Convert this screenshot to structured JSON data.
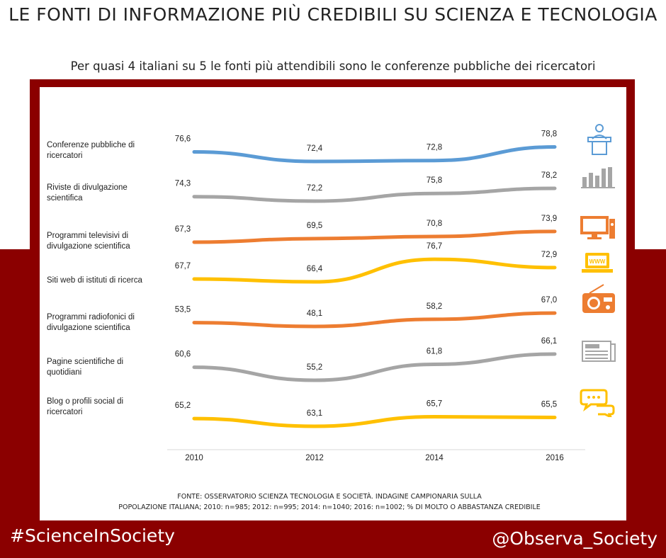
{
  "header": {
    "title": "LE FONTI DI INFORMAZIONE PIÙ CREDIBILI SU SCIENZA E TECNOLOGIA",
    "subtitle": "Per quasi 4 italiani su 5 le fonti più attendibili sono le conferenze pubbliche dei ricercatori"
  },
  "footer": {
    "source_line1": "FONTE: OSSERVATORIO SCIENZA TECNOLOGIA E SOCIETÀ. INDAGINE CAMPIONARIA SULLA",
    "source_line2": "POPOLAZIONE ITALIANA; 2010: n=985; 2012: n=995; 2014: n=1040; 2016: n=1002; % DI MOLTO O ABBASTANZA CREDIBILE",
    "hashtag": "#ScienceInSociety",
    "handle": "@Observa_Society"
  },
  "colors": {
    "frame": "#8b0000",
    "blue": "#5b9bd5",
    "gray": "#a5a5a5",
    "orange": "#ed7d31",
    "yellow": "#ffc000"
  },
  "chart_data": {
    "type": "line",
    "x": [
      "2010",
      "2012",
      "2014",
      "2016"
    ],
    "series": [
      {
        "name": "Conferenze pubbliche di ricercatori",
        "values": [
          76.6,
          72.4,
          72.8,
          78.8
        ],
        "labels": [
          "76,6",
          "72,4",
          "72,8",
          "78,8"
        ],
        "color": "#5b9bd5",
        "icon": "lecture-podium-icon"
      },
      {
        "name": "Riviste di divulgazione scientifica",
        "values": [
          74.3,
          72.2,
          75.8,
          78.2
        ],
        "labels": [
          "74,3",
          "72,2",
          "75,8",
          "78,2"
        ],
        "color": "#a5a5a5",
        "icon": "magazines-icon"
      },
      {
        "name": "Programmi televisivi di divulgazione scientifica",
        "values": [
          67.3,
          69.5,
          70.8,
          73.9
        ],
        "labels": [
          "67,3",
          "69,5",
          "70,8",
          "73,9"
        ],
        "color": "#ed7d31",
        "icon": "television-icon"
      },
      {
        "name": "Siti web di istituti di ricerca",
        "values": [
          67.7,
          66.4,
          76.7,
          72.9
        ],
        "labels": [
          "67,7",
          "66,4",
          "76,7",
          "72,9"
        ],
        "color": "#ffc000",
        "icon": "laptop-www-icon"
      },
      {
        "name": "Programmi radiofonici di divulgazione scientifica",
        "values": [
          53.5,
          48.1,
          58.2,
          67.0
        ],
        "labels": [
          "53,5",
          "48,1",
          "58,2",
          "67,0"
        ],
        "color": "#ed7d31",
        "icon": "radio-icon"
      },
      {
        "name": "Pagine scientifiche di quotidiani",
        "values": [
          60.6,
          55.2,
          61.8,
          66.1
        ],
        "labels": [
          "60,6",
          "55,2",
          "61,8",
          "66,1"
        ],
        "color": "#a5a5a5",
        "icon": "newspaper-icon"
      },
      {
        "name": "Blog o profili social di ricercatori",
        "values": [
          65.2,
          63.1,
          65.7,
          65.5
        ],
        "labels": [
          "65,2",
          "63,1",
          "65,7",
          "65,5"
        ],
        "color": "#ffc000",
        "icon": "speech-bubbles-icon"
      }
    ],
    "category_labels": [
      [
        "Conferenze pubbliche di",
        "ricercatori"
      ],
      [
        "Riviste di divulgazione",
        "scientifica"
      ],
      [
        "Programmi televisivi di",
        "divulgazione scientifica"
      ],
      [
        "Siti web di istituti di ricerca"
      ],
      [
        "Programmi radiofonici di",
        "divulgazione scientifica"
      ],
      [
        "Pagine scientifiche di",
        "quotidiani"
      ],
      [
        "Blog o profili social di",
        "ricercatori"
      ]
    ],
    "grid": false,
    "legend": "none (row labels on left, icons on right)"
  }
}
